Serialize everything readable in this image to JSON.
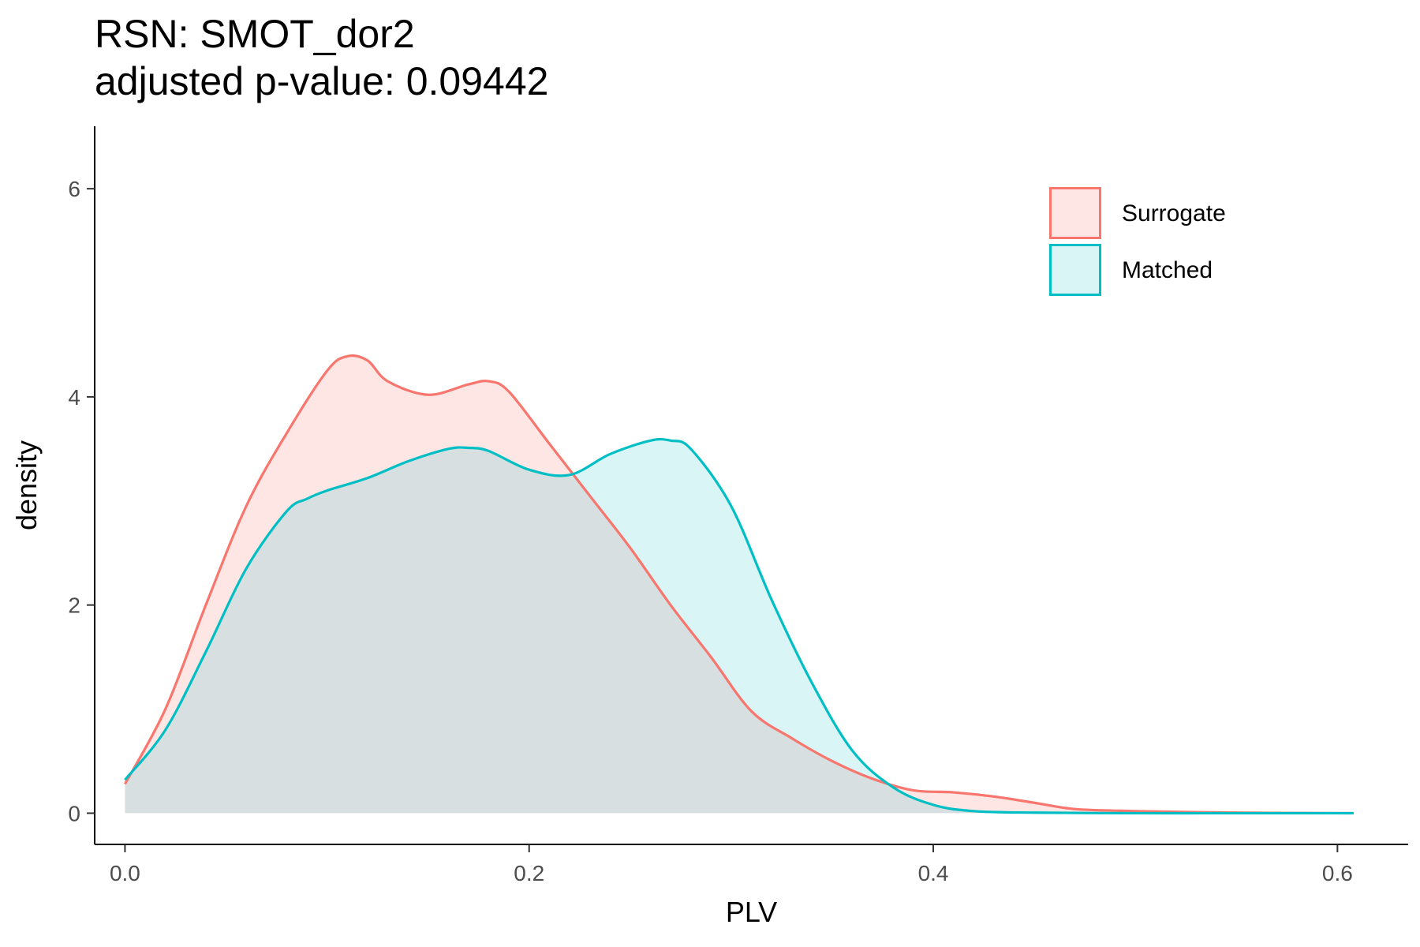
{
  "chart_data": {
    "type": "area",
    "title": "RSN: SMOT_dor2",
    "subtitle": "adjusted p-value: 0.09442",
    "xlabel": "PLV",
    "ylabel": "density",
    "xlim": [
      -0.015,
      0.635
    ],
    "ylim": [
      -0.3,
      6.6
    ],
    "xticks": [
      "0.0",
      "0.2",
      "0.4",
      "0.6"
    ],
    "xtick_values": [
      0.0,
      0.2,
      0.4,
      0.6
    ],
    "yticks": [
      "0",
      "2",
      "4",
      "6"
    ],
    "ytick_values": [
      0,
      2,
      4,
      6
    ],
    "grid": false,
    "legend_position": "top-right",
    "series": [
      {
        "name": "Surrogate",
        "color": "#F8766D",
        "fill": "#F8766D",
        "fill_opacity": 0.18,
        "x": [
          0.0,
          0.02,
          0.04,
          0.06,
          0.08,
          0.1,
          0.11,
          0.12,
          0.13,
          0.15,
          0.17,
          0.18,
          0.19,
          0.21,
          0.23,
          0.25,
          0.27,
          0.29,
          0.31,
          0.33,
          0.35,
          0.37,
          0.39,
          0.41,
          0.43,
          0.45,
          0.47,
          0.5,
          0.55,
          0.6,
          0.608
        ],
        "y": [
          0.28,
          1.0,
          2.0,
          2.95,
          3.65,
          4.25,
          4.39,
          4.35,
          4.15,
          4.02,
          4.12,
          4.15,
          4.05,
          3.55,
          3.05,
          2.55,
          2.0,
          1.5,
          0.98,
          0.72,
          0.5,
          0.33,
          0.22,
          0.2,
          0.16,
          0.1,
          0.04,
          0.02,
          0.005,
          0.0,
          0.0
        ]
      },
      {
        "name": "Matched",
        "color": "#00BFC4",
        "fill": "#00BFC4",
        "fill_opacity": 0.15,
        "x": [
          0.0,
          0.02,
          0.04,
          0.06,
          0.08,
          0.09,
          0.1,
          0.12,
          0.14,
          0.16,
          0.17,
          0.18,
          0.2,
          0.22,
          0.24,
          0.26,
          0.27,
          0.28,
          0.3,
          0.32,
          0.34,
          0.36,
          0.38,
          0.4,
          0.42,
          0.45,
          0.5,
          0.55,
          0.6,
          0.608
        ],
        "y": [
          0.32,
          0.8,
          1.55,
          2.35,
          2.9,
          3.02,
          3.1,
          3.22,
          3.38,
          3.5,
          3.51,
          3.48,
          3.3,
          3.25,
          3.45,
          3.58,
          3.58,
          3.5,
          2.95,
          2.05,
          1.25,
          0.6,
          0.25,
          0.08,
          0.02,
          0.005,
          0.0,
          0.0,
          0.0,
          0.0
        ]
      }
    ]
  }
}
